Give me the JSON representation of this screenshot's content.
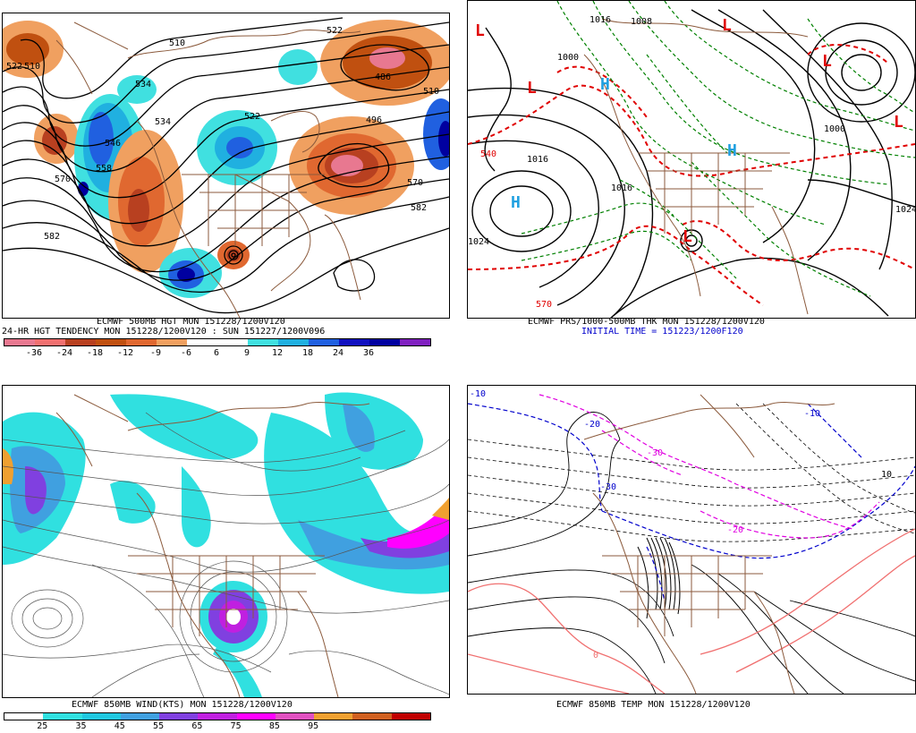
{
  "panels": {
    "hgt500": {
      "caption1": "ECMWF 500MB HGT MON 151228/1200V120",
      "caption2": "24-HR HGT TENDENCY MON 151228/1200V120 : SUN 151227/1200V096",
      "contour_labels": [
        "522",
        "510",
        "534",
        "546",
        "558",
        "570",
        "582",
        "522",
        "486",
        "496",
        "510",
        "522",
        "534",
        "570",
        "582",
        "510"
      ],
      "colorbar": {
        "colors": [
          "#e87890",
          "#f07070",
          "#b84020",
          "#c05010",
          "#e06830",
          "#f0a060",
          "#ffffff",
          "#ffffff",
          "#40e0e0",
          "#20b0e0",
          "#2060e0",
          "#1010c0",
          "#0000a0",
          "#8020c0"
        ],
        "ticks": [
          "-36",
          "-24",
          "-18",
          "-12",
          "-9",
          "-6",
          "6",
          "9",
          "12",
          "18",
          "24",
          "36"
        ]
      }
    },
    "prs1000": {
      "caption1": "ECMWF PRS/1000-500MB THK MON 151228/1200V120",
      "caption2": "INITIAL TIME = 151223/1200F120",
      "contour_labels": [
        "1016",
        "1008",
        "1000",
        "1016",
        "1024",
        "1024",
        "1016",
        "1000",
        "570",
        "540"
      ],
      "markers": [
        "L",
        "L",
        "L",
        "L",
        "L",
        "H",
        "H",
        "H",
        "L"
      ]
    },
    "wind850": {
      "caption1": "ECMWF 850MB WIND(KTS) MON 151228/1200V120",
      "colorbar": {
        "colors": [
          "#ffffff",
          "#30e0e0",
          "#20c8e0",
          "#40a0e0",
          "#8040e0",
          "#c020e0",
          "#ff00ff",
          "#e050c0",
          "#f0a030",
          "#d06020",
          "#c00000"
        ],
        "ticks": [
          "25",
          "35",
          "45",
          "55",
          "65",
          "75",
          "85",
          "95"
        ]
      }
    },
    "temp850": {
      "caption1": "ECMWF 850MB TEMP MON 151228/1200V120",
      "contour_labels": [
        "-10",
        "-20",
        "-30",
        "-10",
        "0",
        "10",
        "-20",
        "-30"
      ]
    }
  }
}
